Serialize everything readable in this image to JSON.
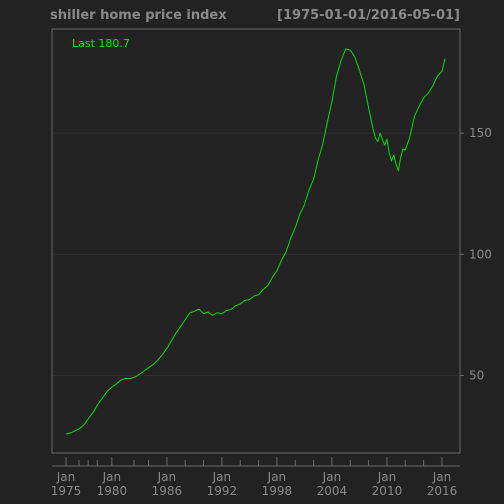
{
  "header": {
    "title": "shiller home price index",
    "date_range": "[1975-01-01/2016-05-01]"
  },
  "colors": {
    "background": "#222222",
    "plot_background": "#232323",
    "frame": "#6a6a6a",
    "grid": "#2e2e2e",
    "text": "#8a8a8a",
    "line": "#00dd00",
    "last_label": "#00ee00"
  },
  "chart_data": {
    "type": "line",
    "title": "shiller home price index",
    "subtitle": "[1975-01-01/2016-05-01]",
    "last_label": "Last 180.7",
    "x_range": [
      "1975-01-01",
      "2016-05-01"
    ],
    "ylim": [
      18,
      193
    ],
    "y_axis_side": "right",
    "y_ticks": [
      50,
      100,
      150
    ],
    "grid": true,
    "x_ticks": [
      {
        "month": "Jan",
        "year": "1975",
        "date": "1975-01-01"
      },
      {
        "month": "Jan",
        "year": "1980",
        "date": "1980-01-01"
      },
      {
        "month": "Jan",
        "year": "1986",
        "date": "1986-01-01"
      },
      {
        "month": "Jan",
        "year": "1992",
        "date": "1992-01-01"
      },
      {
        "month": "Jan",
        "year": "1998",
        "date": "1998-01-01"
      },
      {
        "month": "Jan",
        "year": "2004",
        "date": "2004-01-01"
      },
      {
        "month": "Jan",
        "year": "2010",
        "date": "2010-01-01"
      },
      {
        "month": "Jan",
        "year": "2016",
        "date": "2016-01-01"
      }
    ],
    "x_minor_ticks": [
      "1976-06-01",
      "1977-06-01",
      "1978-06-01",
      "1982-06-01",
      "1984-01-01",
      "1988-01-01",
      "1990-01-01",
      "1994-01-01",
      "1996-01-01",
      "2000-01-01",
      "2002-01-01",
      "2006-01-01",
      "2008-01-01",
      "2012-01-01",
      "2014-01-01"
    ],
    "series": [
      {
        "points": [
          [
            "1975-01-01",
            25.8
          ],
          [
            "1975-07-01",
            26.3
          ],
          [
            "1976-01-01",
            27.2
          ],
          [
            "1976-07-01",
            28.1
          ],
          [
            "1977-01-01",
            29.8
          ],
          [
            "1977-07-01",
            32.5
          ],
          [
            "1978-01-01",
            35.0
          ],
          [
            "1978-07-01",
            38.2
          ],
          [
            "1979-01-01",
            40.8
          ],
          [
            "1979-07-01",
            43.5
          ],
          [
            "1980-01-01",
            45.2
          ],
          [
            "1980-07-01",
            46.5
          ],
          [
            "1981-01-01",
            48.2
          ],
          [
            "1981-07-01",
            48.8
          ],
          [
            "1982-01-01",
            48.7
          ],
          [
            "1982-07-01",
            49.3
          ],
          [
            "1983-01-01",
            50.5
          ],
          [
            "1983-07-01",
            51.8
          ],
          [
            "1984-01-01",
            53.2
          ],
          [
            "1984-07-01",
            54.5
          ],
          [
            "1985-01-01",
            56.3
          ],
          [
            "1985-07-01",
            58.5
          ],
          [
            "1986-01-01",
            61.2
          ],
          [
            "1986-07-01",
            64.3
          ],
          [
            "1987-01-01",
            67.5
          ],
          [
            "1987-07-01",
            70.2
          ],
          [
            "1988-01-01",
            73.0
          ],
          [
            "1988-07-01",
            75.8
          ],
          [
            "1989-01-01",
            76.5
          ],
          [
            "1989-07-01",
            77.4
          ],
          [
            "1990-01-01",
            75.5
          ],
          [
            "1990-07-01",
            76.2
          ],
          [
            "1991-01-01",
            74.8
          ],
          [
            "1991-07-01",
            75.9
          ],
          [
            "1992-01-01",
            75.5
          ],
          [
            "1992-07-01",
            76.8
          ],
          [
            "1993-01-01",
            77.2
          ],
          [
            "1993-07-01",
            78.8
          ],
          [
            "1994-01-01",
            79.5
          ],
          [
            "1994-07-01",
            81.0
          ],
          [
            "1995-01-01",
            81.3
          ],
          [
            "1995-07-01",
            82.8
          ],
          [
            "1996-01-01",
            83.3
          ],
          [
            "1996-07-01",
            85.5
          ],
          [
            "1997-01-01",
            87.0
          ],
          [
            "1997-07-01",
            90.5
          ],
          [
            "1998-01-01",
            93.2
          ],
          [
            "1998-07-01",
            97.5
          ],
          [
            "1999-01-01",
            101.0
          ],
          [
            "1999-07-01",
            106.5
          ],
          [
            "2000-01-01",
            111.0
          ],
          [
            "2000-07-01",
            116.5
          ],
          [
            "2001-01-01",
            120.5
          ],
          [
            "2001-07-01",
            126.5
          ],
          [
            "2002-01-01",
            131.0
          ],
          [
            "2002-07-01",
            139.0
          ],
          [
            "2003-01-01",
            145.5
          ],
          [
            "2003-07-01",
            154.5
          ],
          [
            "2004-01-01",
            163.0
          ],
          [
            "2004-07-01",
            173.5
          ],
          [
            "2005-01-01",
            180.0
          ],
          [
            "2005-07-01",
            184.8
          ],
          [
            "2006-01-01",
            184.3
          ],
          [
            "2006-07-01",
            181.5
          ],
          [
            "2007-01-01",
            176.0
          ],
          [
            "2007-07-01",
            170.0
          ],
          [
            "2008-01-01",
            160.5
          ],
          [
            "2008-07-01",
            151.5
          ],
          [
            "2008-10-01",
            148.0
          ],
          [
            "2009-01-01",
            146.5
          ],
          [
            "2009-04-01",
            150.0
          ],
          [
            "2009-07-01",
            147.5
          ],
          [
            "2009-10-01",
            145.0
          ],
          [
            "2010-01-01",
            147.5
          ],
          [
            "2010-04-01",
            142.0
          ],
          [
            "2010-07-01",
            138.5
          ],
          [
            "2010-10-01",
            141.0
          ],
          [
            "2011-01-01",
            137.0
          ],
          [
            "2011-04-01",
            134.5
          ],
          [
            "2011-07-01",
            140.0
          ],
          [
            "2011-10-01",
            143.5
          ],
          [
            "2012-01-01",
            143.0
          ],
          [
            "2012-07-01",
            148.5
          ],
          [
            "2013-01-01",
            157.0
          ],
          [
            "2013-07-01",
            161.0
          ],
          [
            "2014-01-01",
            164.5
          ],
          [
            "2014-07-01",
            166.5
          ],
          [
            "2015-01-01",
            169.5
          ],
          [
            "2015-07-01",
            173.5
          ],
          [
            "2016-01-01",
            175.5
          ],
          [
            "2016-05-01",
            180.7
          ]
        ]
      }
    ]
  }
}
